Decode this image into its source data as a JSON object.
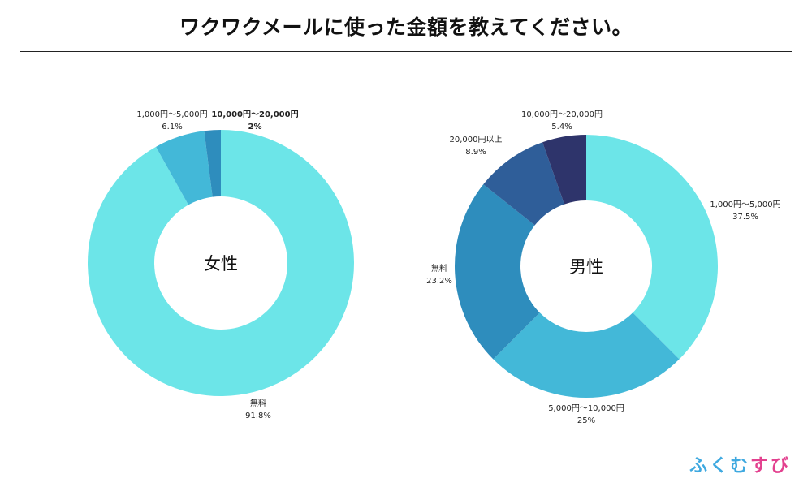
{
  "title": "ワクワクメールに使った金額を教えてください。",
  "logo": {
    "text_part1": "ふくむ",
    "text_part2": "すび"
  },
  "chart_data": [
    {
      "type": "pie",
      "center_label": "女性",
      "slices": [
        {
          "label": "無料",
          "value": 91.8,
          "display": "91.8%",
          "color": "#6ce5e8"
        },
        {
          "label": "1,000円〜5,000円",
          "value": 6.1,
          "display": "6.1%",
          "color": "#43b8d8"
        },
        {
          "label": "10,000円〜20,000円",
          "value": 2.0,
          "display": "2%",
          "color": "#2e8dbd",
          "bold": true
        }
      ]
    },
    {
      "type": "pie",
      "center_label": "男性",
      "slices": [
        {
          "label": "1,000円〜5,000円",
          "value": 37.5,
          "display": "37.5%",
          "color": "#6ce5e8"
        },
        {
          "label": "5,000円〜10,000円",
          "value": 25.0,
          "display": "25%",
          "color": "#43b8d8"
        },
        {
          "label": "無料",
          "value": 23.2,
          "display": "23.2%",
          "color": "#2e8dbd"
        },
        {
          "label": "20,000円以上",
          "value": 8.9,
          "display": "8.9%",
          "color": "#2f5e99"
        },
        {
          "label": "10,000円〜20,000円",
          "value": 5.4,
          "display": "5.4%",
          "color": "#2e346b"
        }
      ]
    }
  ]
}
